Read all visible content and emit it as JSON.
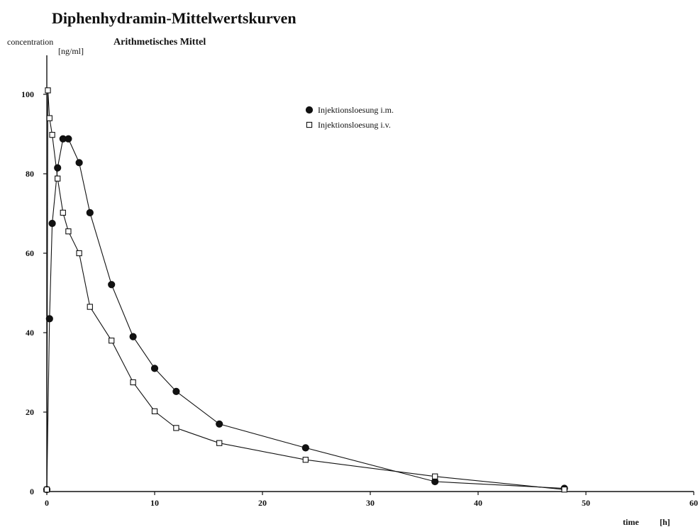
{
  "chart_data": {
    "type": "line",
    "title": "Diphenhydramin-Mittelwertskurven",
    "subtitle": "Arithmetisches Mittel",
    "ylabel": "concentration",
    "ylabel_unit": "[ng/ml]",
    "xlabel": "time",
    "xlabel_unit": "[h]",
    "xlim": [
      0,
      60
    ],
    "ylim": [
      0,
      110
    ],
    "xticks": [
      "0",
      "10",
      "20",
      "30",
      "40",
      "50",
      "60"
    ],
    "yticks": [
      "0",
      "20",
      "40",
      "60",
      "80",
      "100"
    ],
    "grid": false,
    "legend_position": "top-right",
    "series": [
      {
        "name": "Injektionsloesung i.m.",
        "marker": "filled-circle",
        "color": "#111111",
        "x": [
          0,
          0.25,
          0.5,
          1,
          1.5,
          2,
          3,
          4,
          6,
          8,
          10,
          12,
          16,
          24,
          36,
          48
        ],
        "y": [
          0.5,
          43.5,
          67.5,
          81.5,
          88.8,
          88.8,
          82.8,
          70.2,
          52.1,
          39,
          31,
          25.2,
          17,
          11,
          2.5,
          0.8
        ]
      },
      {
        "name": "Injektionsloesung i.v.",
        "marker": "open-square",
        "color": "#111111",
        "x": [
          0,
          0.1,
          0.25,
          0.5,
          1,
          1.5,
          2,
          3,
          4,
          6,
          8,
          10,
          12,
          16,
          24,
          36,
          48
        ],
        "y": [
          0.5,
          101,
          94,
          89.8,
          78.8,
          70.2,
          65.5,
          60,
          46.5,
          38,
          27.5,
          20.2,
          16,
          12.2,
          8,
          3.8,
          0.5
        ]
      }
    ]
  }
}
